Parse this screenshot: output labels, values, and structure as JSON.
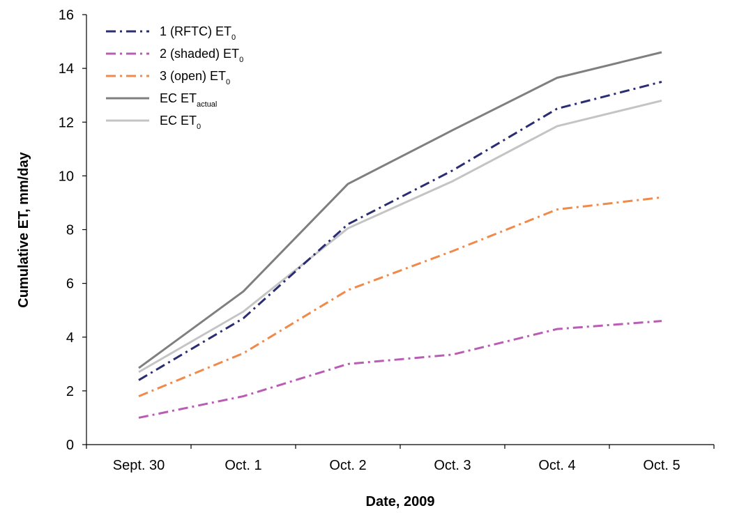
{
  "chart_data": {
    "type": "line",
    "title": "",
    "xlabel": "Date, 2009",
    "ylabel": "Cumulative ET, mm/day",
    "categories": [
      "Sept. 30",
      "Oct. 1",
      "Oct. 2",
      "Oct. 3",
      "Oct. 4",
      "Oct. 5"
    ],
    "y_ticks": [
      "0",
      "2",
      "4",
      "6",
      "8",
      "10",
      "12",
      "14",
      "16"
    ],
    "ylim": [
      0,
      16
    ],
    "grid": false,
    "legend_position": "top-left",
    "series": [
      {
        "name": "1 (RFTC) ET",
        "name_sub": "0",
        "color": "#2b2d72",
        "dash": "dash-dot",
        "values": [
          2.4,
          4.7,
          8.2,
          10.2,
          12.5,
          13.5
        ]
      },
      {
        "name": "2 (shaded) ET",
        "name_sub": "0",
        "color": "#b95cb4",
        "dash": "dash-dot",
        "values": [
          1.0,
          1.8,
          3.0,
          3.35,
          4.3,
          4.6
        ]
      },
      {
        "name": "3 (open) ET",
        "name_sub": "0",
        "color": "#f08a4b",
        "dash": "dash-dot",
        "values": [
          1.8,
          3.4,
          5.75,
          7.2,
          8.75,
          9.2
        ]
      },
      {
        "name": "EC ET",
        "name_sub": "actual",
        "color": "#7f7f7f",
        "dash": "solid",
        "values": [
          2.85,
          5.7,
          9.7,
          11.7,
          13.65,
          14.6
        ]
      },
      {
        "name": "EC ET",
        "name_sub": "0",
        "color": "#c4c4c4",
        "dash": "solid",
        "values": [
          2.7,
          4.95,
          8.05,
          9.8,
          11.85,
          12.8
        ]
      }
    ]
  }
}
